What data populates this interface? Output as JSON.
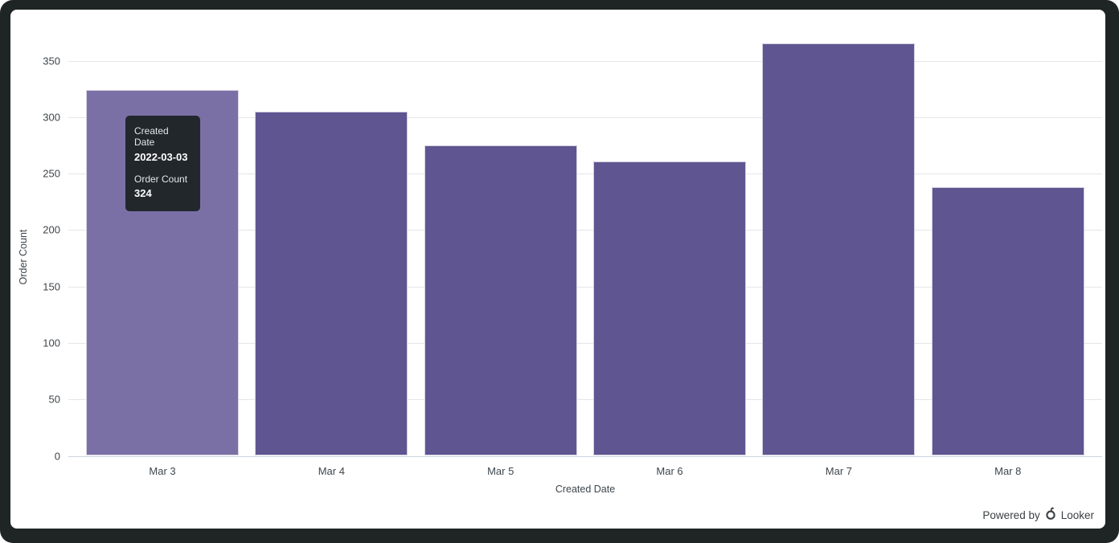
{
  "chart_data": {
    "type": "bar",
    "title": "",
    "categories": [
      "Mar 3",
      "Mar 4",
      "Mar 5",
      "Mar 6",
      "Mar 7",
      "Mar 8"
    ],
    "values": [
      324,
      305,
      275,
      261,
      365,
      238
    ],
    "xlabel": "Created Date",
    "ylabel": "Order Count",
    "ylim": [
      0,
      350
    ],
    "yticks": [
      0,
      50,
      100,
      150,
      200,
      250,
      300,
      350
    ],
    "grid": true,
    "legend": "none",
    "hovered_index": 0,
    "bar_color": "#5f5591",
    "bar_hover_color": "#7b70a6"
  },
  "tooltip": {
    "field1_label": "Created Date",
    "field1_value": "2022-03-03",
    "field2_label": "Order Count",
    "field2_value": "324"
  },
  "footer": {
    "powered_by": "Powered by",
    "brand": "Looker"
  },
  "colors": {
    "frame": "#1f2425",
    "card": "#ffffff",
    "gridline": "#e6e6e6",
    "axis_line": "#ccd3e2",
    "axis_text": "#3e464c",
    "tooltip_bg": "#22272c",
    "tooltip_text": "#ffffff",
    "footer_text": "#3c4043"
  }
}
